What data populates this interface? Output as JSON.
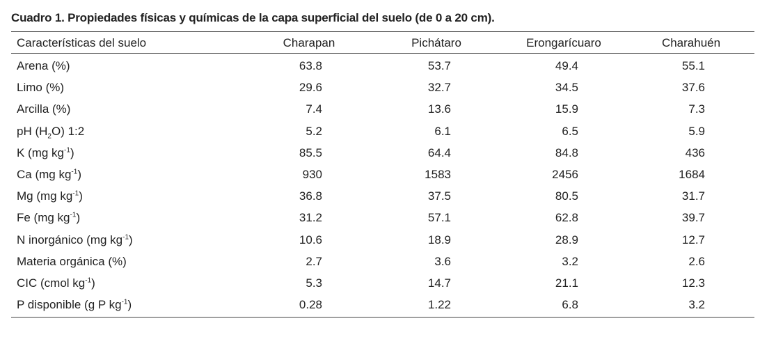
{
  "title": "Cuadro 1. Propiedades físicas y químicas de la capa superficial del suelo (de 0 a 20 cm).",
  "table": {
    "header": [
      "Características del suelo",
      "Charapan",
      "Pichátaro",
      "Erongarícuaro",
      "Charahuén"
    ],
    "rows": [
      {
        "label": [
          "Arena (%)"
        ],
        "values": [
          "63.8",
          "53.7",
          "49.4",
          "55.1"
        ]
      },
      {
        "label": [
          "Limo (%)"
        ],
        "values": [
          "29.6",
          "32.7",
          "34.5",
          "37.6"
        ]
      },
      {
        "label": [
          "Arcilla (%)"
        ],
        "values": [
          "7.4",
          "13.6",
          "15.9",
          "7.3"
        ]
      },
      {
        "label": [
          "pH (H",
          {
            "sub": "2"
          },
          "O) 1:2"
        ],
        "values": [
          "5.2",
          "6.1",
          "6.5",
          "5.9"
        ]
      },
      {
        "label": [
          "K (mg kg",
          {
            "sup": "-1"
          },
          ")"
        ],
        "values": [
          "85.5",
          "64.4",
          "84.8",
          "436"
        ]
      },
      {
        "label": [
          "Ca (mg kg",
          {
            "sup": "-1"
          },
          ")"
        ],
        "values": [
          "930",
          "1583",
          "2456",
          "1684"
        ]
      },
      {
        "label": [
          "Mg (mg kg",
          {
            "sup": "-1"
          },
          ")"
        ],
        "values": [
          "36.8",
          "37.5",
          "80.5",
          "31.7"
        ]
      },
      {
        "label": [
          "Fe (mg kg",
          {
            "sup": "-1"
          },
          ")"
        ],
        "values": [
          "31.2",
          "57.1",
          "62.8",
          "39.7"
        ]
      },
      {
        "label": [
          "N inorgánico (mg kg",
          {
            "sup": "-1"
          },
          ")"
        ],
        "values": [
          "10.6",
          "18.9",
          "28.9",
          "12.7"
        ]
      },
      {
        "label": [
          "Materia orgánica (%)"
        ],
        "values": [
          "2.7",
          "3.6",
          "3.2",
          "2.6"
        ]
      },
      {
        "label": [
          "CIC (cmol kg",
          {
            "sup": "-1"
          },
          ")"
        ],
        "values": [
          "5.3",
          "14.7",
          "21.1",
          "12.3"
        ]
      },
      {
        "label": [
          "P disponible (g P kg",
          {
            "sup": "-1"
          },
          ")"
        ],
        "values": [
          "0.28",
          "1.22",
          "6.8",
          "3.2"
        ]
      }
    ]
  }
}
